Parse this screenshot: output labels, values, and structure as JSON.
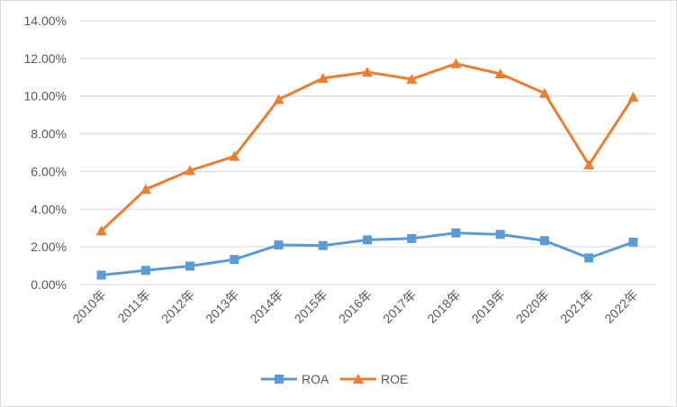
{
  "chart_data": {
    "type": "line",
    "title": "",
    "xlabel": "",
    "ylabel": "",
    "categories": [
      "2010年",
      "2011年",
      "2012年",
      "2013年",
      "2014年",
      "2015年",
      "2016年",
      "2017年",
      "2018年",
      "2019年",
      "2020年",
      "2021年",
      "2022年"
    ],
    "ylim": [
      0,
      0.14
    ],
    "yticks": [
      "0.00%",
      "2.00%",
      "4.00%",
      "6.00%",
      "8.00%",
      "10.00%",
      "12.00%",
      "14.00%"
    ],
    "grid": true,
    "legend_position": "bottom",
    "series": [
      {
        "name": "ROA",
        "color": "#5b9bd5",
        "marker": "square",
        "values": [
          0.005,
          0.0075,
          0.0098,
          0.0133,
          0.021,
          0.0207,
          0.0237,
          0.0244,
          0.0274,
          0.0266,
          0.0233,
          0.0141,
          0.0225
        ]
      },
      {
        "name": "ROE",
        "color": "#ed7d31",
        "marker": "triangle",
        "values": [
          0.0285,
          0.0505,
          0.0605,
          0.068,
          0.0982,
          0.1095,
          0.1127,
          0.109,
          0.1172,
          0.1118,
          0.1015,
          0.0635,
          0.0995
        ]
      }
    ]
  }
}
